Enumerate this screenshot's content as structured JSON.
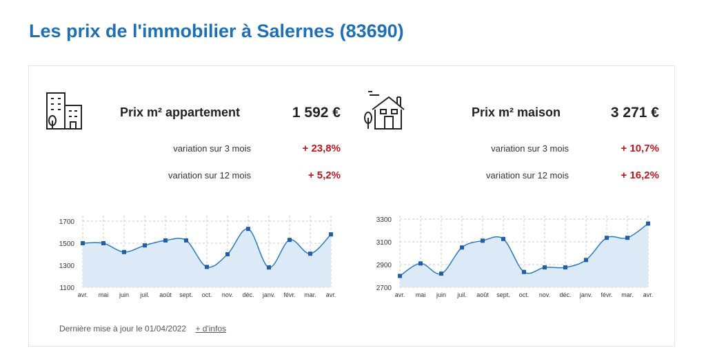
{
  "title": "Les prix de l'immobilier à Salernes (83690)",
  "appartement": {
    "label": "Prix m² appartement",
    "price": "1 592 €",
    "var3_label": "variation sur 3 mois",
    "var3_value": "+ 23,8%",
    "var12_label": "variation sur 12 mois",
    "var12_value": "+ 5,2%",
    "icon": "building-icon"
  },
  "maison": {
    "label": "Prix m² maison",
    "price": "3 271 €",
    "var3_label": "variation sur 3 mois",
    "var3_value": "+ 10,7%",
    "var12_label": "variation sur 12 mois",
    "var12_value": "+ 16,2%",
    "icon": "house-icon"
  },
  "colors": {
    "accent": "#1f6fb5",
    "positive": "#c0141c",
    "line": "#2a78c0",
    "fill": "#dce9f6"
  },
  "chart_data": [
    {
      "type": "area",
      "categories": [
        "avr.",
        "mai",
        "juin",
        "juil.",
        "août",
        "sept.",
        "oct.",
        "nov.",
        "déc.",
        "janv.",
        "févr.",
        "mar.",
        "avr."
      ],
      "values": [
        1500,
        1500,
        1420,
        1480,
        1525,
        1525,
        1285,
        1400,
        1630,
        1280,
        1530,
        1405,
        1580
      ],
      "ylim": [
        1100,
        1750
      ],
      "yticks": [
        "1700",
        "1500",
        "1300",
        "1100"
      ],
      "grid": true
    },
    {
      "type": "area",
      "categories": [
        "avr.",
        "mai",
        "juin",
        "juil.",
        "août",
        "sept.",
        "oct.",
        "nov.",
        "déc.",
        "janv.",
        "févr.",
        "mar.",
        "avr."
      ],
      "values": [
        2800,
        2910,
        2820,
        3050,
        3110,
        3125,
        2835,
        2875,
        2875,
        2940,
        3135,
        3135,
        3260
      ],
      "ylim": [
        2700,
        3330
      ],
      "yticks": [
        "3300",
        "3100",
        "2900",
        "2700"
      ],
      "grid": true
    }
  ],
  "footer": {
    "updated": "Dernière mise à jour le 01/04/2022",
    "more_link": "+ d'infos"
  }
}
